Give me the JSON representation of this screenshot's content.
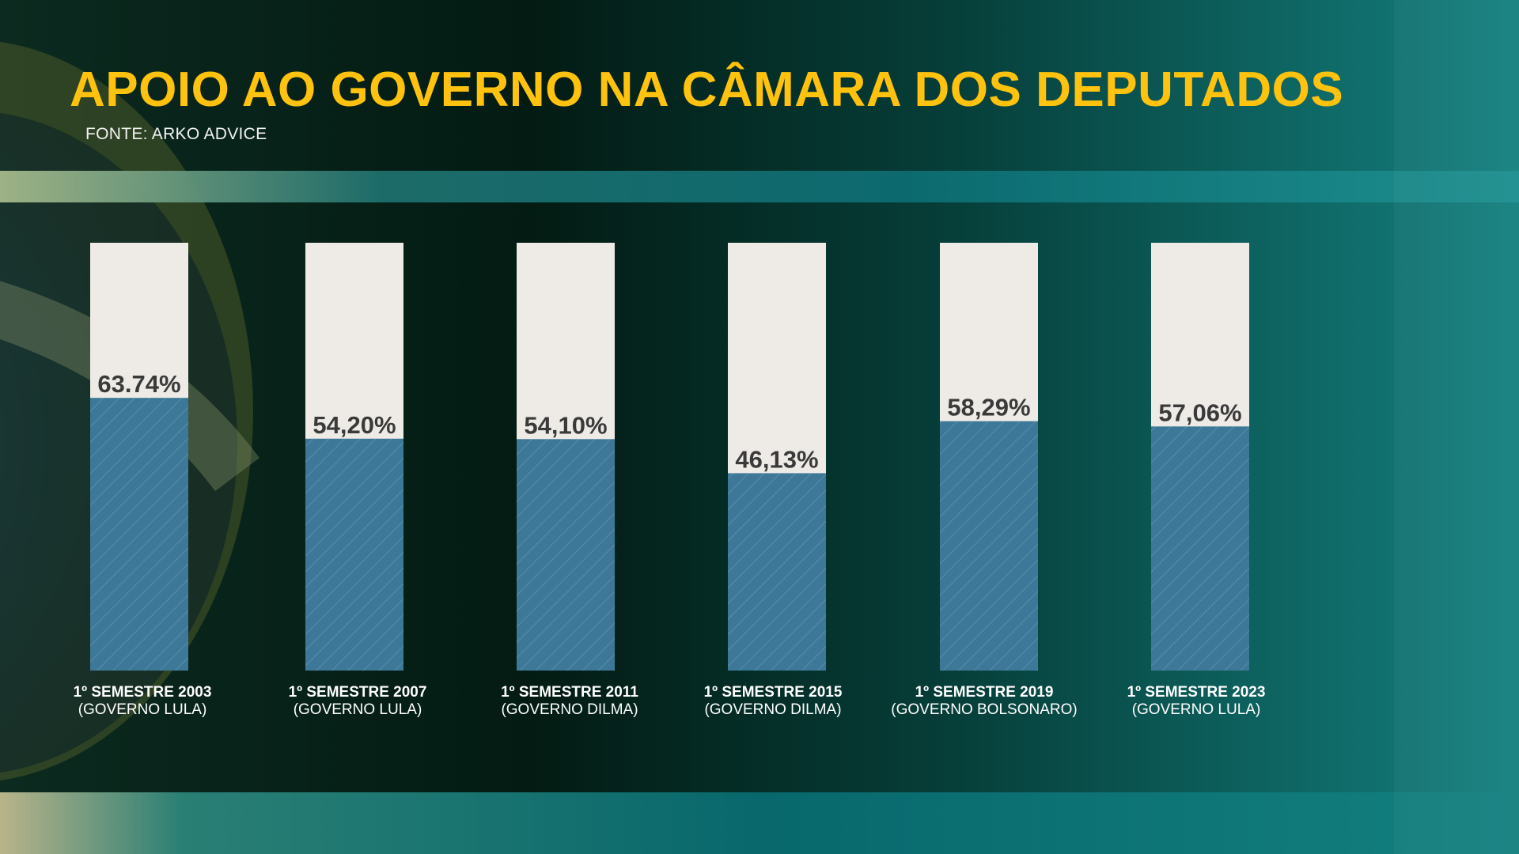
{
  "header": {
    "title": "APOIO AO GOVERNO NA CÂMARA DOS DEPUTADOS",
    "source": "FONTE: ARKO ADVICE"
  },
  "colors": {
    "title": "#ffc20e",
    "bar_fill": "#3d7898",
    "bar_track": "#eeebe6",
    "value_text": "#3a3a3a",
    "category_text": "#ffffff"
  },
  "chart_data": {
    "type": "bar",
    "title": "APOIO AO GOVERNO NA CÂMARA DOS DEPUTADOS",
    "ylim": [
      0,
      100
    ],
    "grid": false,
    "categories": [
      {
        "line1": "1º SEMESTRE 2003",
        "line2": "(GOVERNO LULA)"
      },
      {
        "line1": "1º SEMESTRE 2007",
        "line2": "(GOVERNO LULA)"
      },
      {
        "line1": "1º SEMESTRE 2011",
        "line2": "(GOVERNO DILMA)"
      },
      {
        "line1": "1º SEMESTRE 2015",
        "line2": "(GOVERNO DILMA)"
      },
      {
        "line1": "1º SEMESTRE 2019",
        "line2": "(GOVERNO BOLSONARO)"
      },
      {
        "line1": "1º SEMESTRE 2023",
        "line2": "(GOVERNO LULA)"
      }
    ],
    "values": [
      63.74,
      54.2,
      54.1,
      46.13,
      58.29,
      57.06
    ],
    "value_labels": [
      "63.74%",
      "54,20%",
      "54,10%",
      "46,13%",
      "58,29%",
      "57,06%"
    ]
  }
}
